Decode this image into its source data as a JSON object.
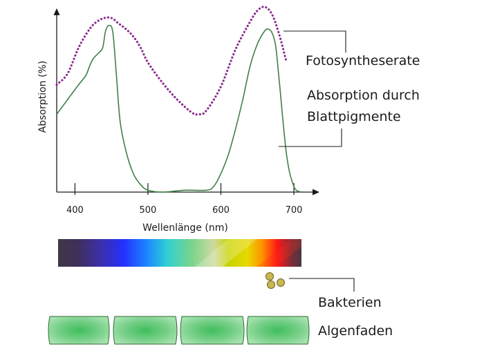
{
  "chart_data": {
    "type": "line",
    "xlabel": "Wellenlänge (nm)",
    "ylabel": "Absorption (%)",
    "x_ticks": [
      "400",
      "500",
      "600",
      "700"
    ],
    "xlim": [
      375,
      735
    ],
    "ylim": [
      0,
      100
    ],
    "series": [
      {
        "name": "Fotosyntheserate",
        "style": "dotted",
        "color": "#8b2a8f",
        "x": [
          375,
          390,
          405,
          420,
          430,
          440,
          450,
          460,
          470,
          480,
          490,
          500,
          520,
          540,
          560,
          570,
          580,
          600,
          620,
          640,
          650,
          660,
          670,
          680,
          690
        ],
        "y": [
          58,
          64,
          78,
          88,
          92,
          94,
          94,
          91,
          88,
          84,
          78,
          70,
          59,
          50,
          43,
          42,
          44,
          57,
          77,
          92,
          98,
          100,
          96,
          85,
          70
        ]
      },
      {
        "name": "Absorption durch Blattpigmente",
        "style": "solid",
        "color": "#3f7f45",
        "x": [
          375,
          390,
          405,
          415,
          420,
          425,
          432,
          438,
          442,
          447,
          452,
          457,
          462,
          470,
          480,
          490,
          500,
          520,
          550,
          580,
          590,
          600,
          610,
          620,
          630,
          640,
          650,
          660,
          665,
          670,
          675,
          680,
          690,
          700,
          710
        ],
        "y": [
          42,
          50,
          58,
          63,
          68,
          72,
          75,
          78,
          87,
          90,
          86,
          62,
          38,
          22,
          10,
          4,
          1,
          0,
          1,
          1,
          3,
          10,
          20,
          34,
          50,
          68,
          80,
          87,
          88,
          86,
          79,
          60,
          20,
          3,
          0
        ]
      }
    ]
  },
  "labels": {
    "photosynthesis": "Fotosyntheserate",
    "absorption_line1": "Absorption durch",
    "absorption_line2": "Blattpigmente",
    "bacteria": "Bakterien",
    "alga": "Algenfaden"
  },
  "colors": {
    "photosynthesis": "#8b2a8f",
    "absorption": "#3f7f45",
    "bacteria_fill": "#c8b850",
    "bacteria_stroke": "#6d6320",
    "alga_cell_edge": "#8fd69a",
    "alga_cell_center": "#3fbe5c"
  }
}
